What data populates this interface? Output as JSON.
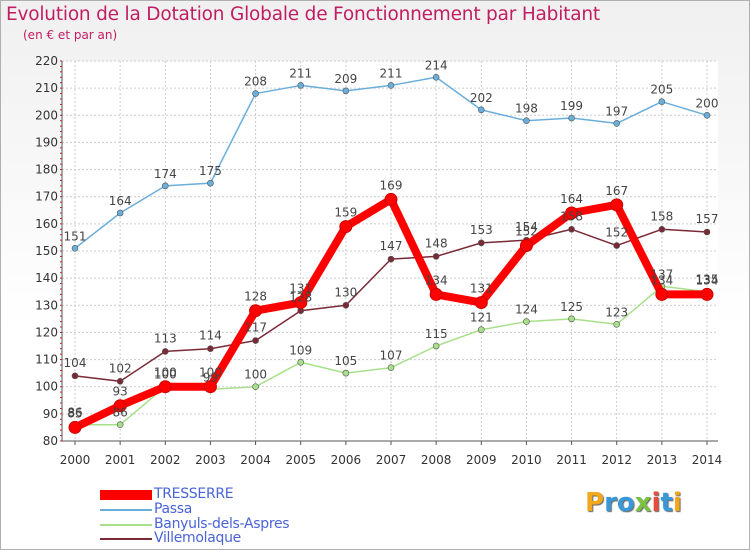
{
  "title": "Evolution de la Dotation Globale de Fonctionnement par Habitant",
  "subtitle": "(en € et par an)",
  "logo": {
    "letters": [
      "P",
      "r",
      "o",
      "x",
      "i",
      "t",
      "i"
    ],
    "colors": [
      "#f2a81d",
      "#3a98d8",
      "#3a98d8",
      "#7cc142",
      "#e84c3d",
      "#3a98d8",
      "#f2a81d"
    ]
  },
  "chart_data": {
    "type": "line",
    "title": "Evolution de la Dotation Globale de Fonctionnement par Habitant",
    "subtitle": "(en € et par an)",
    "xlabel": "",
    "ylabel": "",
    "x": [
      2000,
      2001,
      2002,
      2003,
      2004,
      2005,
      2006,
      2007,
      2008,
      2009,
      2010,
      2011,
      2012,
      2013,
      2014
    ],
    "ylim": [
      80,
      220
    ],
    "yticks": [
      80,
      90,
      100,
      110,
      120,
      130,
      140,
      150,
      160,
      170,
      180,
      190,
      200,
      210,
      220
    ],
    "grid": true,
    "legend_position": "bottom-left",
    "series": [
      {
        "name": "Passa",
        "color": "#6aaedc",
        "values": [
          151,
          164,
          174,
          175,
          208,
          211,
          209,
          211,
          214,
          202,
          198,
          199,
          197,
          205,
          200
        ]
      },
      {
        "name": "Banyuls-dels-Aspres",
        "color": "#a8e08a",
        "values": [
          86,
          86,
          100,
          99,
          100,
          109,
          105,
          107,
          115,
          121,
          124,
          125,
          123,
          137,
          135
        ]
      },
      {
        "name": "Villemolaque",
        "color": "#7a2a36",
        "values": [
          104,
          102,
          113,
          114,
          117,
          128,
          130,
          147,
          148,
          153,
          154,
          158,
          152,
          158,
          157
        ]
      },
      {
        "name": "TRESSERRE",
        "color": "#ff0000",
        "values": [
          85,
          93,
          100,
          100,
          128,
          131,
          159,
          169,
          134,
          131,
          152,
          164,
          167,
          134,
          134
        ]
      }
    ],
    "legend_order": [
      "TRESSERRE",
      "Passa",
      "Banyuls-dels-Aspres",
      "Villemolaque"
    ]
  }
}
